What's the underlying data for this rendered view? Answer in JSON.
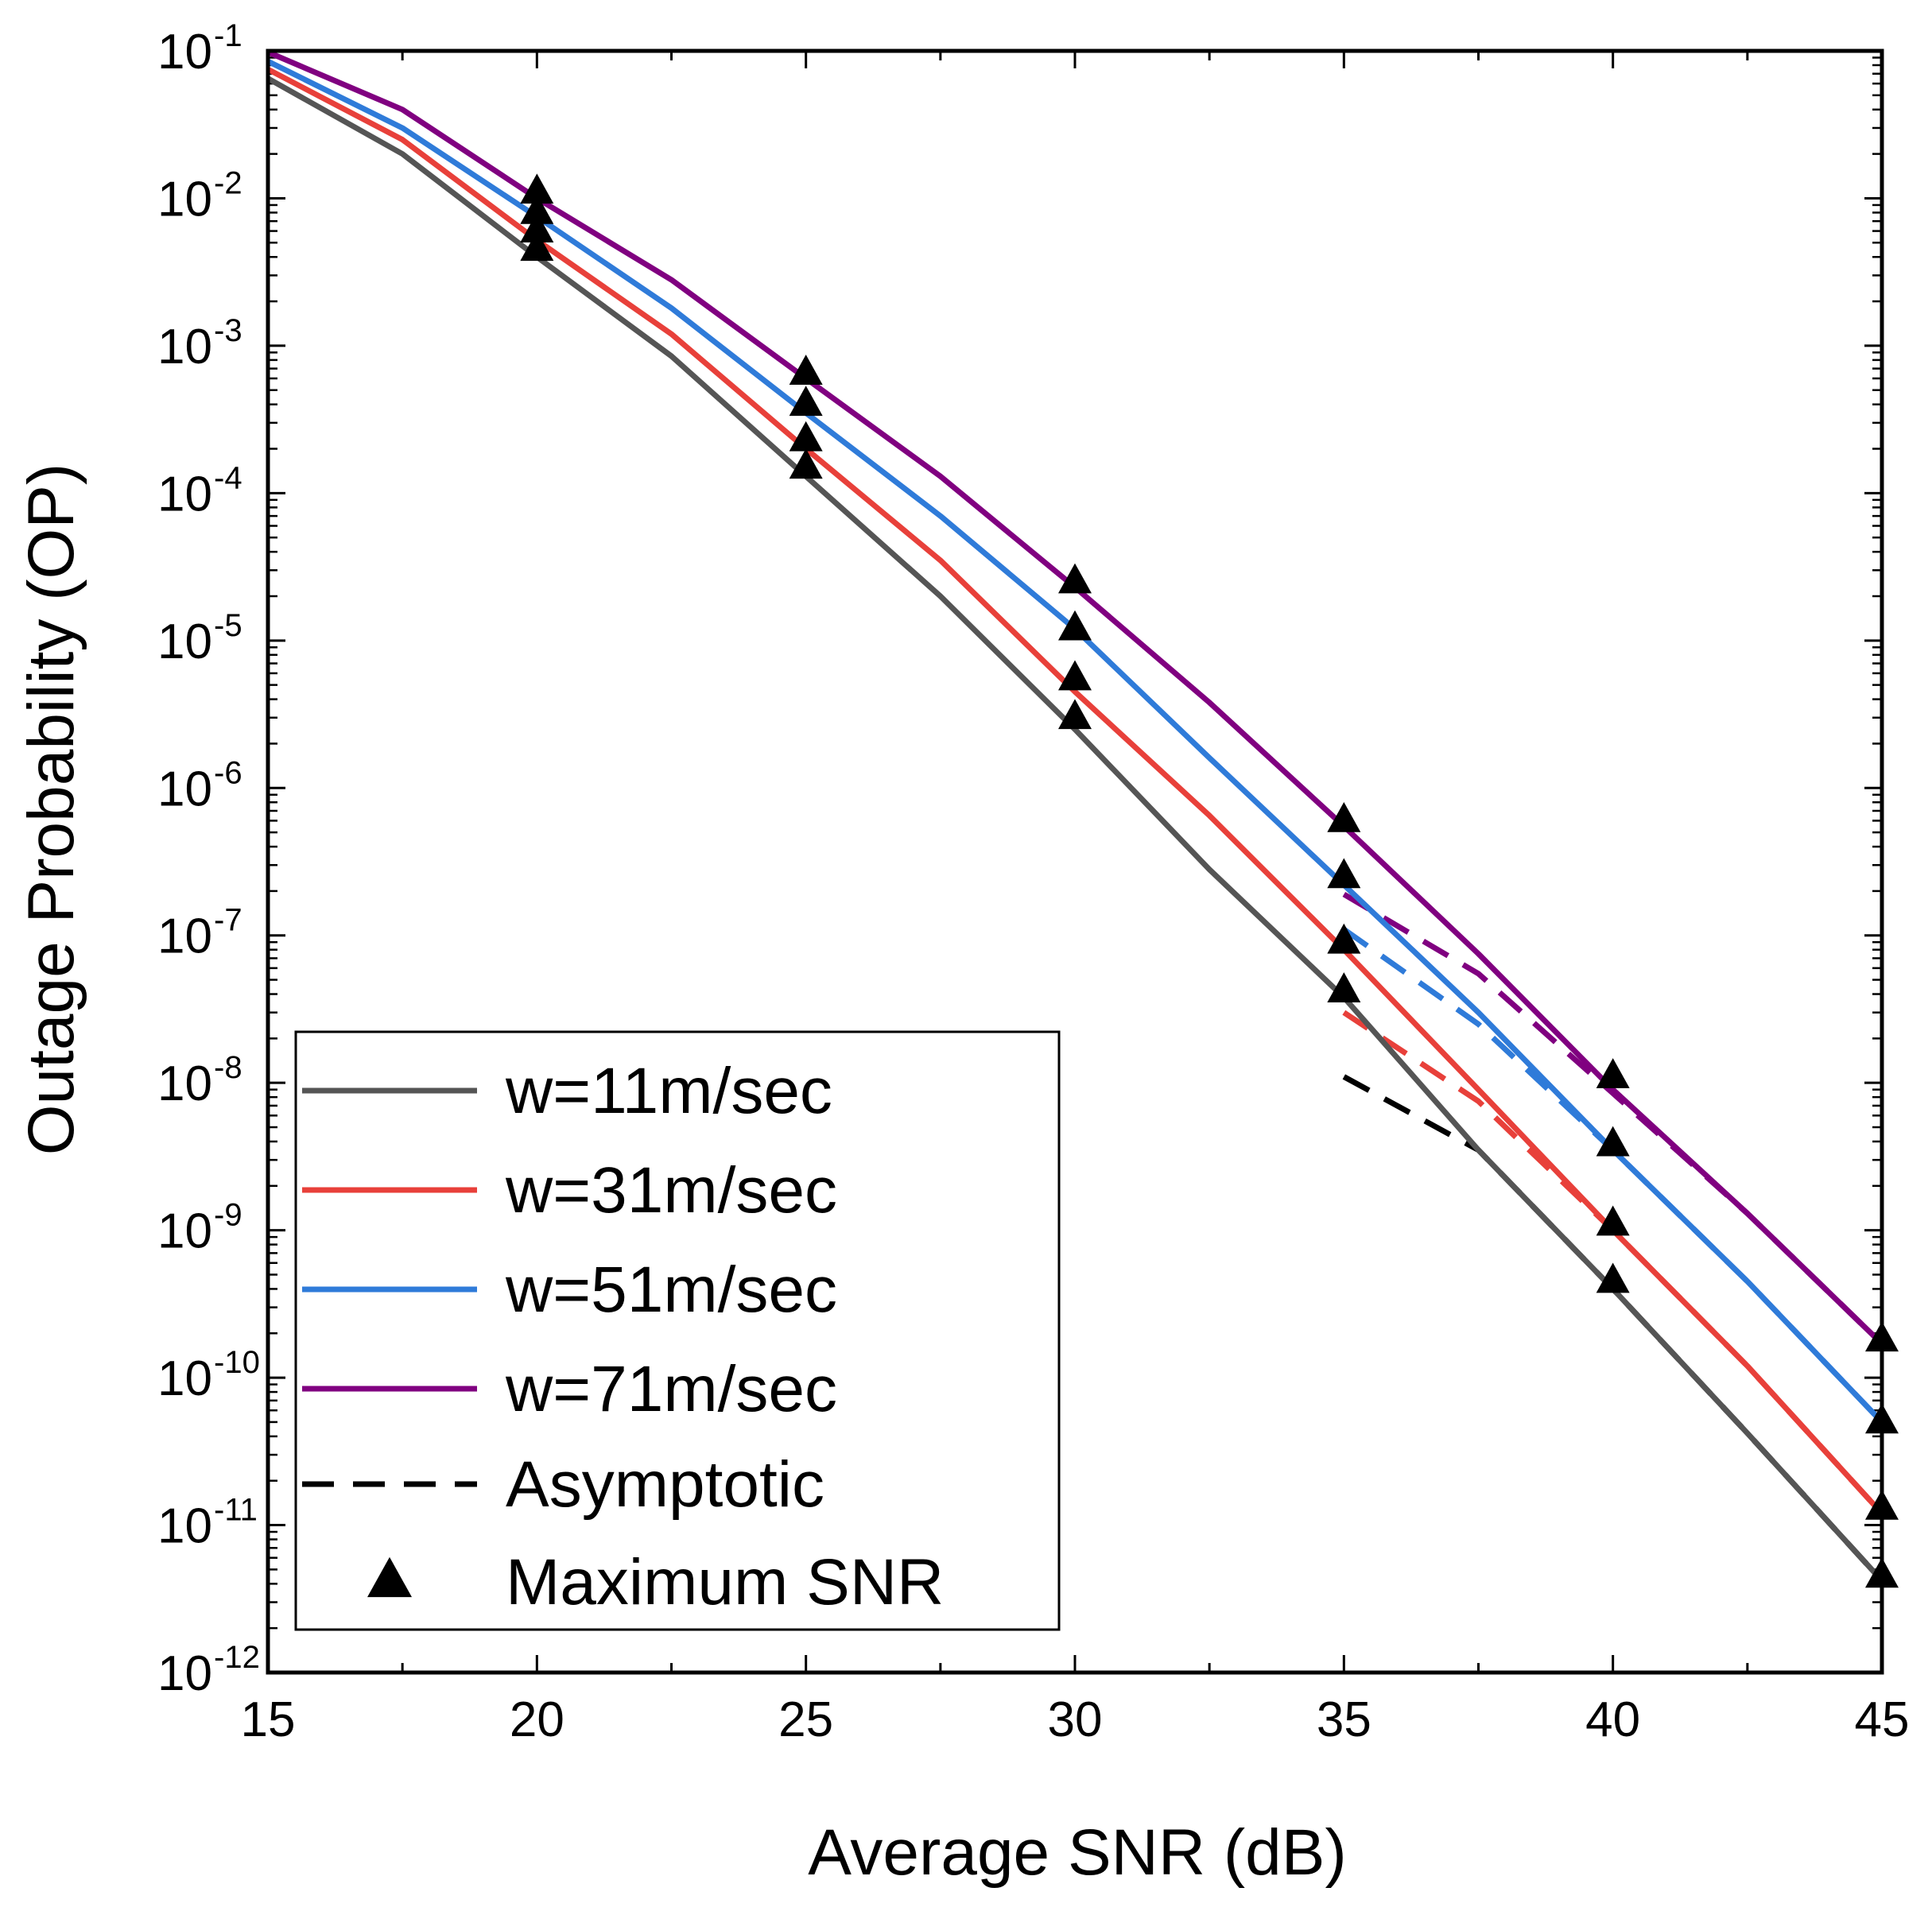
{
  "chart_data": {
    "type": "line",
    "xlabel": "Average SNR (dB)",
    "ylabel": "Outage Probability (OP)",
    "xlim": [
      15,
      45
    ],
    "ylim": [
      1e-12,
      0.1
    ],
    "yscale": "log",
    "grid": false,
    "legend_position": "bottom-left",
    "x_ticks": [
      "15",
      "20",
      "25",
      "30",
      "35",
      "40",
      "45"
    ],
    "y_ticks": [
      {
        "base": "10",
        "exp": "-12"
      },
      {
        "base": "10",
        "exp": "-11"
      },
      {
        "base": "10",
        "exp": "-10"
      },
      {
        "base": "10",
        "exp": "-9"
      },
      {
        "base": "10",
        "exp": "-8"
      },
      {
        "base": "10",
        "exp": "-7"
      },
      {
        "base": "10",
        "exp": "-6"
      },
      {
        "base": "10",
        "exp": "-5"
      },
      {
        "base": "10",
        "exp": "-4"
      },
      {
        "base": "10",
        "exp": "-3"
      },
      {
        "base": "10",
        "exp": "-2"
      },
      {
        "base": "10",
        "exp": "-1"
      }
    ],
    "x": [
      15,
      17.5,
      20,
      22.5,
      25,
      27.5,
      30,
      32.5,
      35,
      37.5,
      40,
      42.5,
      45
    ],
    "series": [
      {
        "name": "w=11m/sec",
        "color": "#555555",
        "values": [
          0.065,
          0.02,
          0.004,
          0.00085,
          0.00013,
          2e-05,
          2.5e-06,
          2.8e-07,
          3.8e-08,
          3.5e-09,
          4e-10,
          4.2e-11,
          4.2e-12
        ]
      },
      {
        "name": "w=31m/sec",
        "color": "#e8403a",
        "values": [
          0.075,
          0.025,
          0.0052,
          0.0012,
          0.0002,
          3.5e-05,
          4.5e-06,
          6.5e-07,
          8e-08,
          9e-09,
          1e-09,
          1.2e-10,
          1.2e-11
        ]
      },
      {
        "name": "w=51m/sec",
        "color": "#2f7bd9",
        "values": [
          0.085,
          0.03,
          0.0075,
          0.0018,
          0.00035,
          7e-05,
          1.2e-05,
          1.6e-06,
          2.2e-07,
          3e-08,
          3.5e-09,
          4.5e-10,
          5e-11
        ]
      },
      {
        "name": "w=71m/sec",
        "color": "#800080",
        "values": [
          0.098,
          0.04,
          0.01,
          0.0028,
          0.0006,
          0.00013,
          2.3e-05,
          3.8e-06,
          5.5e-07,
          7.5e-08,
          9e-09,
          1.3e-09,
          1.7e-10
        ]
      }
    ],
    "asymptotic": {
      "name": "Asymptotic",
      "style": "dashed",
      "x": [
        35,
        37.5,
        40,
        42.5,
        45
      ],
      "series": [
        {
          "color": "#000000",
          "values": [
            1.1e-08,
            3.5e-09,
            4e-10,
            4.2e-11,
            4.2e-12
          ]
        },
        {
          "color": "#e8403a",
          "values": [
            3e-08,
            7.5e-09,
            1e-09,
            1.2e-10,
            1.2e-11
          ]
        },
        {
          "color": "#2f7bd9",
          "values": [
            1.1e-07,
            2.5e-08,
            3.5e-09,
            4.5e-10,
            5e-11
          ]
        },
        {
          "color": "#800080",
          "values": [
            1.9e-07,
            5.5e-08,
            8.5e-09,
            1.3e-09,
            1.7e-10
          ]
        }
      ]
    },
    "markers": {
      "name": "Maximum SNR",
      "shape": "triangle",
      "color": "#000000",
      "x": [
        20,
        25,
        30,
        35,
        40,
        45
      ],
      "groups": [
        [
          0.0045,
          0.006,
          0.008,
          0.011
        ],
        [
          0.00015,
          0.00023,
          0.0004,
          0.00065
        ],
        [
          3e-06,
          5.5e-06,
          1.2e-05,
          2.5e-05
        ],
        [
          4.2e-08,
          9e-08,
          2.5e-07,
          6e-07
        ],
        [
          4.5e-10,
          1.1e-09,
          3.8e-09,
          1.1e-08
        ],
        [
          4.5e-12,
          1.3e-11,
          5e-11,
          1.8e-10
        ]
      ]
    }
  }
}
